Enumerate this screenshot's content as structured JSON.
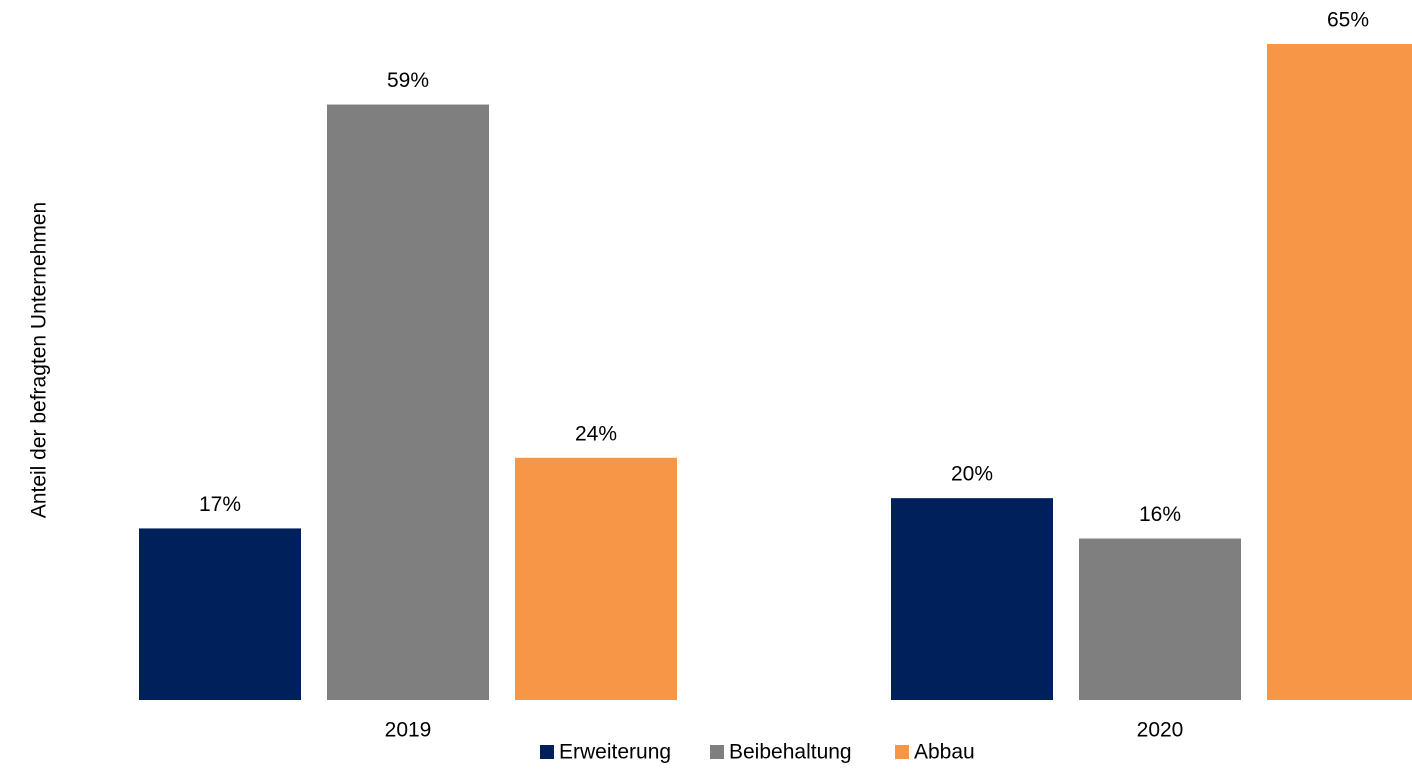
{
  "chart_data": {
    "type": "bar",
    "y_label": "Anteil der befragten Unternehmen",
    "categories": [
      "2019",
      "2020"
    ],
    "series": [
      {
        "name": "Erweiterung",
        "color": "#00205b",
        "values": [
          17,
          20
        ],
        "value_labels": [
          "17%",
          "20%"
        ]
      },
      {
        "name": "Beibehaltung",
        "color": "#7f7f7f",
        "values": [
          59,
          16
        ],
        "value_labels": [
          "59%",
          "16%"
        ]
      },
      {
        "name": "Abbau",
        "color": "#f79646",
        "values": [
          24,
          65
        ],
        "value_labels": [
          "24%",
          "65%"
        ]
      }
    ],
    "ylim": [
      0,
      65
    ],
    "legend": "bottom"
  }
}
